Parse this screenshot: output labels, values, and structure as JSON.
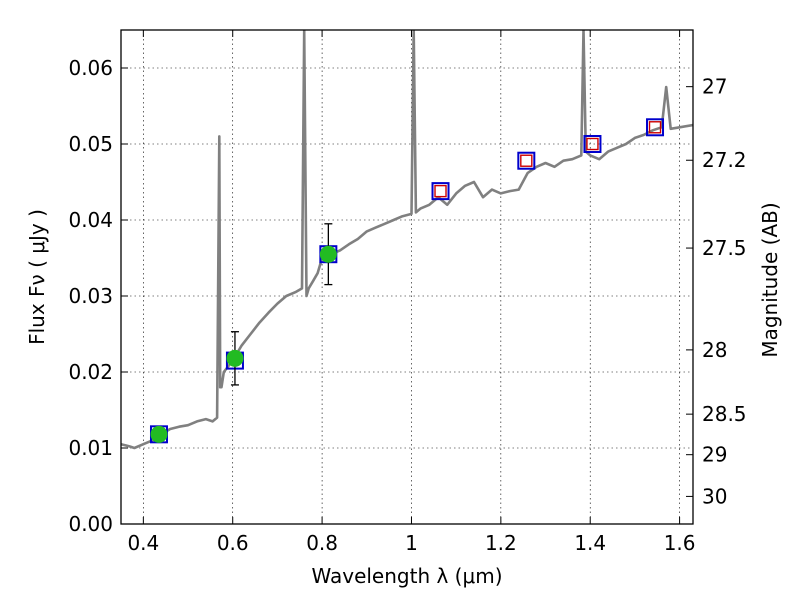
{
  "chart_data": {
    "type": "scatter",
    "xlabel": "Wavelength  λ (μm)",
    "ylabel": "Flux  Fν  ( μJy )",
    "y2label": "Magnitude (AB)",
    "xlim": [
      0.35,
      1.63
    ],
    "ylim": [
      0.0,
      0.065
    ],
    "grid": true,
    "x_ticks": [
      0.4,
      0.6,
      0.8,
      1.0,
      1.2,
      1.4,
      1.6
    ],
    "x_tick_labels": [
      "0.4",
      "0.6",
      "0.8",
      "1",
      "1.2",
      "1.4",
      "1.6"
    ],
    "y_ticks": [
      0.0,
      0.01,
      0.02,
      0.03,
      0.04,
      0.05,
      0.06
    ],
    "y_tick_labels": [
      "0.00",
      "0.01",
      "0.02",
      "0.03",
      "0.04",
      "0.05",
      "0.06"
    ],
    "y2_ticks": [
      27,
      27.2,
      27.5,
      28,
      28.5,
      29,
      30
    ],
    "y2_tick_labels": [
      "27",
      "27.2",
      "27.5",
      "28",
      "28.5",
      "29",
      "30"
    ],
    "colors": {
      "spectrum": "#808080",
      "model_box": "#0000cc",
      "upper_limit": "#cc0000",
      "detection": "#22bb22",
      "errorbar": "#000000"
    },
    "series": [
      {
        "kind": "line",
        "x": [
          0.35,
          0.37,
          0.38,
          0.4,
          0.42,
          0.44,
          0.46,
          0.48,
          0.5,
          0.52,
          0.54,
          0.555,
          0.565,
          0.57,
          0.572,
          0.575,
          0.58,
          0.6,
          0.62,
          0.64,
          0.66,
          0.68,
          0.7,
          0.72,
          0.74,
          0.755,
          0.76,
          0.765,
          0.77,
          0.78,
          0.79,
          0.8,
          0.82,
          0.84,
          0.86,
          0.88,
          0.9,
          0.92,
          0.94,
          0.96,
          0.98,
          1.0,
          1.005,
          1.01,
          1.02,
          1.04,
          1.06,
          1.08,
          1.1,
          1.12,
          1.14,
          1.16,
          1.18,
          1.2,
          1.22,
          1.24,
          1.26,
          1.28,
          1.3,
          1.32,
          1.34,
          1.36,
          1.38,
          1.385,
          1.39,
          1.4,
          1.42,
          1.44,
          1.46,
          1.48,
          1.5,
          1.52,
          1.54,
          1.56,
          1.57,
          1.58,
          1.6,
          1.63
        ],
        "y": [
          0.0105,
          0.0102,
          0.01,
          0.0105,
          0.011,
          0.0118,
          0.0125,
          0.0128,
          0.013,
          0.0135,
          0.0138,
          0.0135,
          0.014,
          0.051,
          0.018,
          0.018,
          0.02,
          0.0215,
          0.0235,
          0.025,
          0.0265,
          0.0278,
          0.029,
          0.03,
          0.0305,
          0.031,
          0.065,
          0.03,
          0.031,
          0.032,
          0.033,
          0.035,
          0.0355,
          0.036,
          0.0368,
          0.0375,
          0.0385,
          0.039,
          0.0395,
          0.04,
          0.0405,
          0.0408,
          0.065,
          0.041,
          0.0415,
          0.042,
          0.043,
          0.042,
          0.0435,
          0.0445,
          0.045,
          0.043,
          0.044,
          0.0435,
          0.0438,
          0.044,
          0.0462,
          0.047,
          0.0475,
          0.047,
          0.0478,
          0.048,
          0.0485,
          0.065,
          0.049,
          0.0485,
          0.048,
          0.049,
          0.0495,
          0.05,
          0.0508,
          0.0512,
          0.0518,
          0.0522,
          0.0575,
          0.052,
          0.0522,
          0.0525
        ]
      },
      {
        "kind": "model_boxes",
        "x": [
          0.435,
          0.605,
          0.814,
          1.065,
          1.257,
          1.405,
          1.545
        ],
        "y": [
          0.0118,
          0.0215,
          0.0355,
          0.0438,
          0.0478,
          0.05,
          0.0522
        ]
      },
      {
        "kind": "upper_limits",
        "x": [
          1.065,
          1.257,
          1.405,
          1.545
        ],
        "y": [
          0.0438,
          0.0478,
          0.05,
          0.0522
        ]
      },
      {
        "kind": "detections",
        "x": [
          0.435,
          0.605,
          0.814
        ],
        "y": [
          0.0118,
          0.0218,
          0.0355
        ],
        "yerr": [
          0.0005,
          0.0035,
          0.004
        ]
      }
    ]
  }
}
